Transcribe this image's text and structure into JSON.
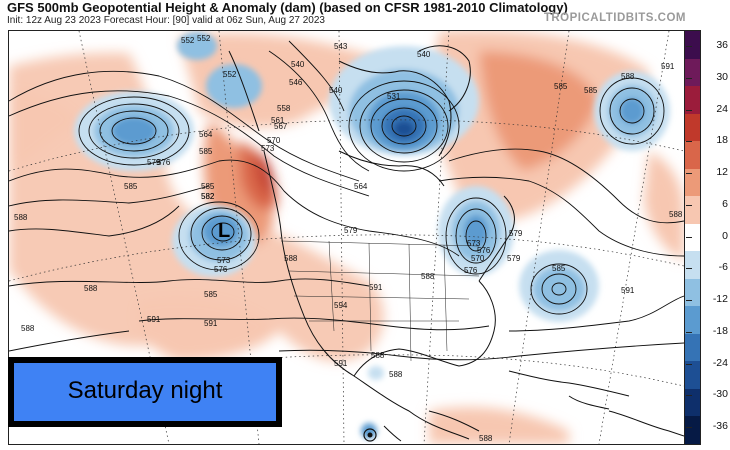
{
  "header": {
    "title": "GFS 500mb Geopotential Height & Anomaly (dam) (based on CFSR 1981-2010 Climatology)",
    "subtitle": "Init: 12z Aug 23 2023   Forecast Hour: [90]   valid at 06z Sun, Aug 27 2023",
    "brand": "TROPICALTIDBITS.COM"
  },
  "colorbar": {
    "labels": [
      "36",
      "30",
      "24",
      "18",
      "12",
      "6",
      "0",
      "-6",
      "-12",
      "-18",
      "-24",
      "-30",
      "-36"
    ],
    "colors": [
      "#3c0d4d",
      "#6e1a5a",
      "#9b1c3b",
      "#c0392b",
      "#d9664a",
      "#ec9a78",
      "#f7c7b1",
      "#ffffff",
      "#c6dff0",
      "#8fc0e2",
      "#5b9bd0",
      "#3573b5",
      "#1d4f94",
      "#0e2f6b",
      "#061a45"
    ]
  },
  "overlay": {
    "label": "Saturday night"
  },
  "map": {
    "low_symbol": "L",
    "contour_labels": [
      "552",
      "552",
      "540",
      "546",
      "531",
      "540",
      "540",
      "543",
      "558",
      "561",
      "564",
      "567",
      "570",
      "573",
      "576",
      "579",
      "582",
      "585",
      "588",
      "591",
      "594",
      "585",
      "588",
      "585",
      "591",
      "588",
      "585",
      "582",
      "573",
      "576",
      "579",
      "588",
      "591",
      "591",
      "588",
      "588",
      "585",
      "591",
      "588",
      "588",
      "591",
      "588",
      "585",
      "588",
      "585",
      "564",
      "552",
      "570",
      "573",
      "576",
      "579",
      "576",
      "579"
    ]
  }
}
